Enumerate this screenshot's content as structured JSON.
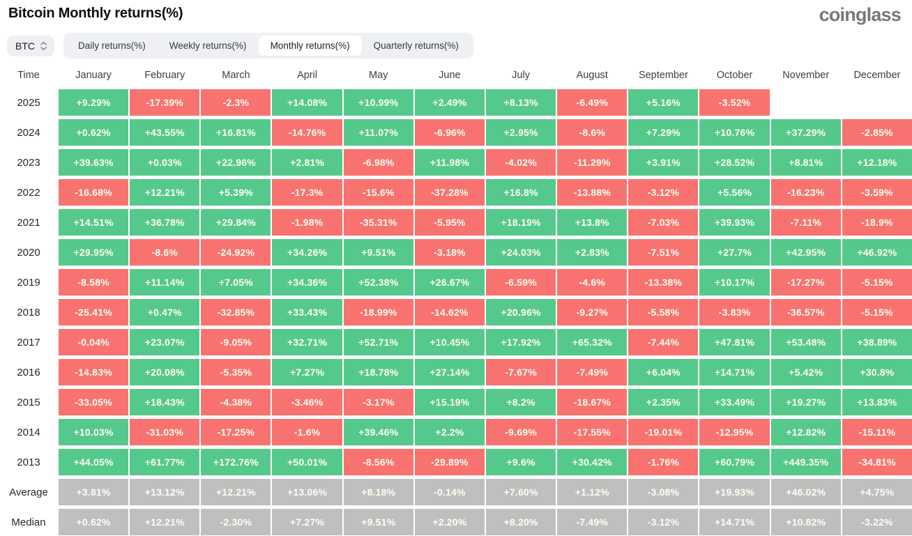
{
  "page": {
    "title": "Bitcoin Monthly returns(%)",
    "logo": "coinglass"
  },
  "controls": {
    "symbol": {
      "value": "BTC",
      "icon": "sort-updown-icon"
    },
    "tabs": [
      {
        "id": "daily",
        "label": "Daily returns(%)",
        "active": false
      },
      {
        "id": "weekly",
        "label": "Weekly returns(%)",
        "active": false
      },
      {
        "id": "monthly",
        "label": "Monthly returns(%)",
        "active": true
      },
      {
        "id": "quarterly",
        "label": "Quarterly returns(%)",
        "active": false
      }
    ]
  },
  "colors": {
    "positive": "#55c98c",
    "negative": "#f87370",
    "neutral": "#bfbfbf",
    "pill_bg": "#eef0f3",
    "cell_text": "#fffdf2"
  },
  "chart_data": {
    "type": "heatmap",
    "title": "Bitcoin Monthly returns(%)",
    "unit": "%",
    "columns": [
      "Time",
      "January",
      "February",
      "March",
      "April",
      "May",
      "June",
      "July",
      "August",
      "September",
      "October",
      "November",
      "December"
    ],
    "rows": [
      {
        "label": "2025",
        "kind": "year",
        "values": [
          "+9.29%",
          "-17.39%",
          "-2.3%",
          "+14.08%",
          "+10.99%",
          "+2.49%",
          "+8.13%",
          "-6.49%",
          "+5.16%",
          "-3.52%",
          "",
          ""
        ]
      },
      {
        "label": "2024",
        "kind": "year",
        "values": [
          "+0.62%",
          "+43.55%",
          "+16.81%",
          "-14.76%",
          "+11.07%",
          "-6.96%",
          "+2.95%",
          "-8.6%",
          "+7.29%",
          "+10.76%",
          "+37.29%",
          "-2.85%"
        ]
      },
      {
        "label": "2023",
        "kind": "year",
        "values": [
          "+39.63%",
          "+0.03%",
          "+22.96%",
          "+2.81%",
          "-6.98%",
          "+11.98%",
          "-4.02%",
          "-11.29%",
          "+3.91%",
          "+28.52%",
          "+8.81%",
          "+12.18%"
        ]
      },
      {
        "label": "2022",
        "kind": "year",
        "values": [
          "-16.68%",
          "+12.21%",
          "+5.39%",
          "-17.3%",
          "-15.6%",
          "-37.28%",
          "+16.8%",
          "-13.88%",
          "-3.12%",
          "+5.56%",
          "-16.23%",
          "-3.59%"
        ]
      },
      {
        "label": "2021",
        "kind": "year",
        "values": [
          "+14.51%",
          "+36.78%",
          "+29.84%",
          "-1.98%",
          "-35.31%",
          "-5.95%",
          "+18.19%",
          "+13.8%",
          "-7.03%",
          "+39.93%",
          "-7.11%",
          "-18.9%"
        ]
      },
      {
        "label": "2020",
        "kind": "year",
        "values": [
          "+29.95%",
          "-8.6%",
          "-24.92%",
          "+34.26%",
          "+9.51%",
          "-3.18%",
          "+24.03%",
          "+2.83%",
          "-7.51%",
          "+27.7%",
          "+42.95%",
          "+46.92%"
        ]
      },
      {
        "label": "2019",
        "kind": "year",
        "values": [
          "-8.58%",
          "+11.14%",
          "+7.05%",
          "+34.36%",
          "+52.38%",
          "+26.67%",
          "-6.59%",
          "-4.6%",
          "-13.38%",
          "+10.17%",
          "-17.27%",
          "-5.15%"
        ]
      },
      {
        "label": "2018",
        "kind": "year",
        "values": [
          "-25.41%",
          "+0.47%",
          "-32.85%",
          "+33.43%",
          "-18.99%",
          "-14.62%",
          "+20.96%",
          "-9.27%",
          "-5.58%",
          "-3.83%",
          "-36.57%",
          "-5.15%"
        ]
      },
      {
        "label": "2017",
        "kind": "year",
        "values": [
          "-0.04%",
          "+23.07%",
          "-9.05%",
          "+32.71%",
          "+52.71%",
          "+10.45%",
          "+17.92%",
          "+65.32%",
          "-7.44%",
          "+47.81%",
          "+53.48%",
          "+38.89%"
        ]
      },
      {
        "label": "2016",
        "kind": "year",
        "values": [
          "-14.83%",
          "+20.08%",
          "-5.35%",
          "+7.27%",
          "+18.78%",
          "+27.14%",
          "-7.67%",
          "-7.49%",
          "+6.04%",
          "+14.71%",
          "+5.42%",
          "+30.8%"
        ]
      },
      {
        "label": "2015",
        "kind": "year",
        "values": [
          "-33.05%",
          "+18.43%",
          "-4.38%",
          "-3.46%",
          "-3.17%",
          "+15.19%",
          "+8.2%",
          "-18.67%",
          "+2.35%",
          "+33.49%",
          "+19.27%",
          "+13.83%"
        ]
      },
      {
        "label": "2014",
        "kind": "year",
        "values": [
          "+10.03%",
          "-31.03%",
          "-17.25%",
          "-1.6%",
          "+39.46%",
          "+2.2%",
          "-9.69%",
          "-17.55%",
          "-19.01%",
          "-12.95%",
          "+12.82%",
          "-15.11%"
        ]
      },
      {
        "label": "2013",
        "kind": "year",
        "values": [
          "+44.05%",
          "+61.77%",
          "+172.76%",
          "+50.01%",
          "-8.56%",
          "-29.89%",
          "+9.6%",
          "+30.42%",
          "-1.76%",
          "+60.79%",
          "+449.35%",
          "-34.81%"
        ]
      },
      {
        "label": "Average",
        "kind": "summary",
        "values": [
          "+3.81%",
          "+13.12%",
          "+12.21%",
          "+13.06%",
          "+8.18%",
          "-0.14%",
          "+7.60%",
          "+1.12%",
          "-3.08%",
          "+19.93%",
          "+46.02%",
          "+4.75%"
        ]
      },
      {
        "label": "Median",
        "kind": "summary",
        "values": [
          "+0.62%",
          "+12.21%",
          "-2.30%",
          "+7.27%",
          "+9.51%",
          "+2.20%",
          "+8.20%",
          "-7.49%",
          "-3.12%",
          "+14.71%",
          "+10.82%",
          "-3.22%"
        ]
      }
    ]
  }
}
